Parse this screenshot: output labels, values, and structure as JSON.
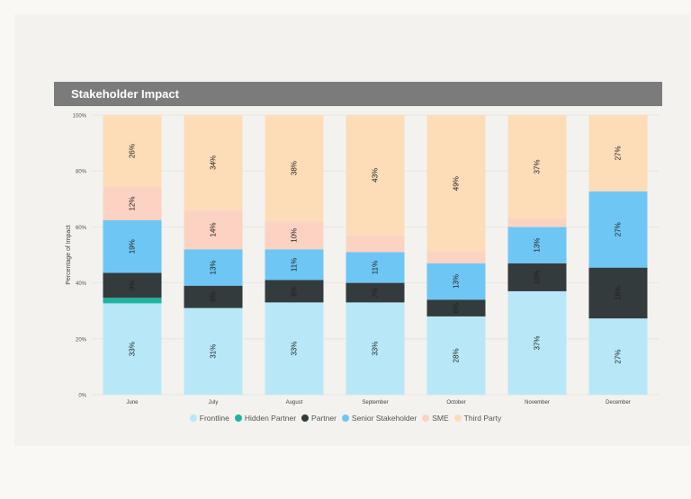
{
  "title": "Stakeholder Impact",
  "chart_data": {
    "type": "bar",
    "stacked": true,
    "title": "Stakeholder Impact",
    "xlabel": "",
    "ylabel": "Percentage of Impact",
    "ylim": [
      0,
      100
    ],
    "yticks": [
      "0%",
      "20%",
      "40%",
      "60%",
      "80%",
      "100%"
    ],
    "categories": [
      "June",
      "July",
      "August",
      "September",
      "October",
      "November",
      "December"
    ],
    "series": [
      {
        "name": "Frontline",
        "color": "#b8e8f8",
        "values": [
          33,
          31,
          33,
          33,
          28,
          37,
          27
        ],
        "labels": [
          "33%",
          "31%",
          "33%",
          "33%",
          "28%",
          "37%",
          "27%"
        ]
      },
      {
        "name": "Hidden Partner",
        "color": "#1fb3a0",
        "values": [
          2,
          0,
          0,
          0,
          0,
          0,
          0
        ],
        "labels": [
          "",
          "",
          "",
          "",
          "",
          "",
          ""
        ]
      },
      {
        "name": "Partner",
        "color": "#333b3c",
        "values": [
          9,
          8,
          8,
          7,
          6,
          10,
          18
        ],
        "labels": [
          "9%",
          "8%",
          "8%",
          "7%",
          "6%",
          "10%",
          "18%"
        ]
      },
      {
        "name": "Senior Stakeholder",
        "color": "#6ec6f5",
        "values": [
          19,
          13,
          11,
          11,
          13,
          13,
          27
        ],
        "labels": [
          "19%",
          "13%",
          "11%",
          "11%",
          "13%",
          "13%",
          "27%"
        ]
      },
      {
        "name": "SME",
        "color": "#fcd2c2",
        "values": [
          12,
          14,
          10,
          6,
          4,
          3,
          0
        ],
        "labels": [
          "12%",
          "14%",
          "10%",
          "",
          "",
          "",
          ""
        ]
      },
      {
        "name": "Third Party",
        "color": "#fddcb8",
        "values": [
          26,
          34,
          38,
          43,
          49,
          37,
          27
        ],
        "labels": [
          "26%",
          "34%",
          "38%",
          "43%",
          "49%",
          "37%",
          "27%"
        ]
      }
    ]
  }
}
